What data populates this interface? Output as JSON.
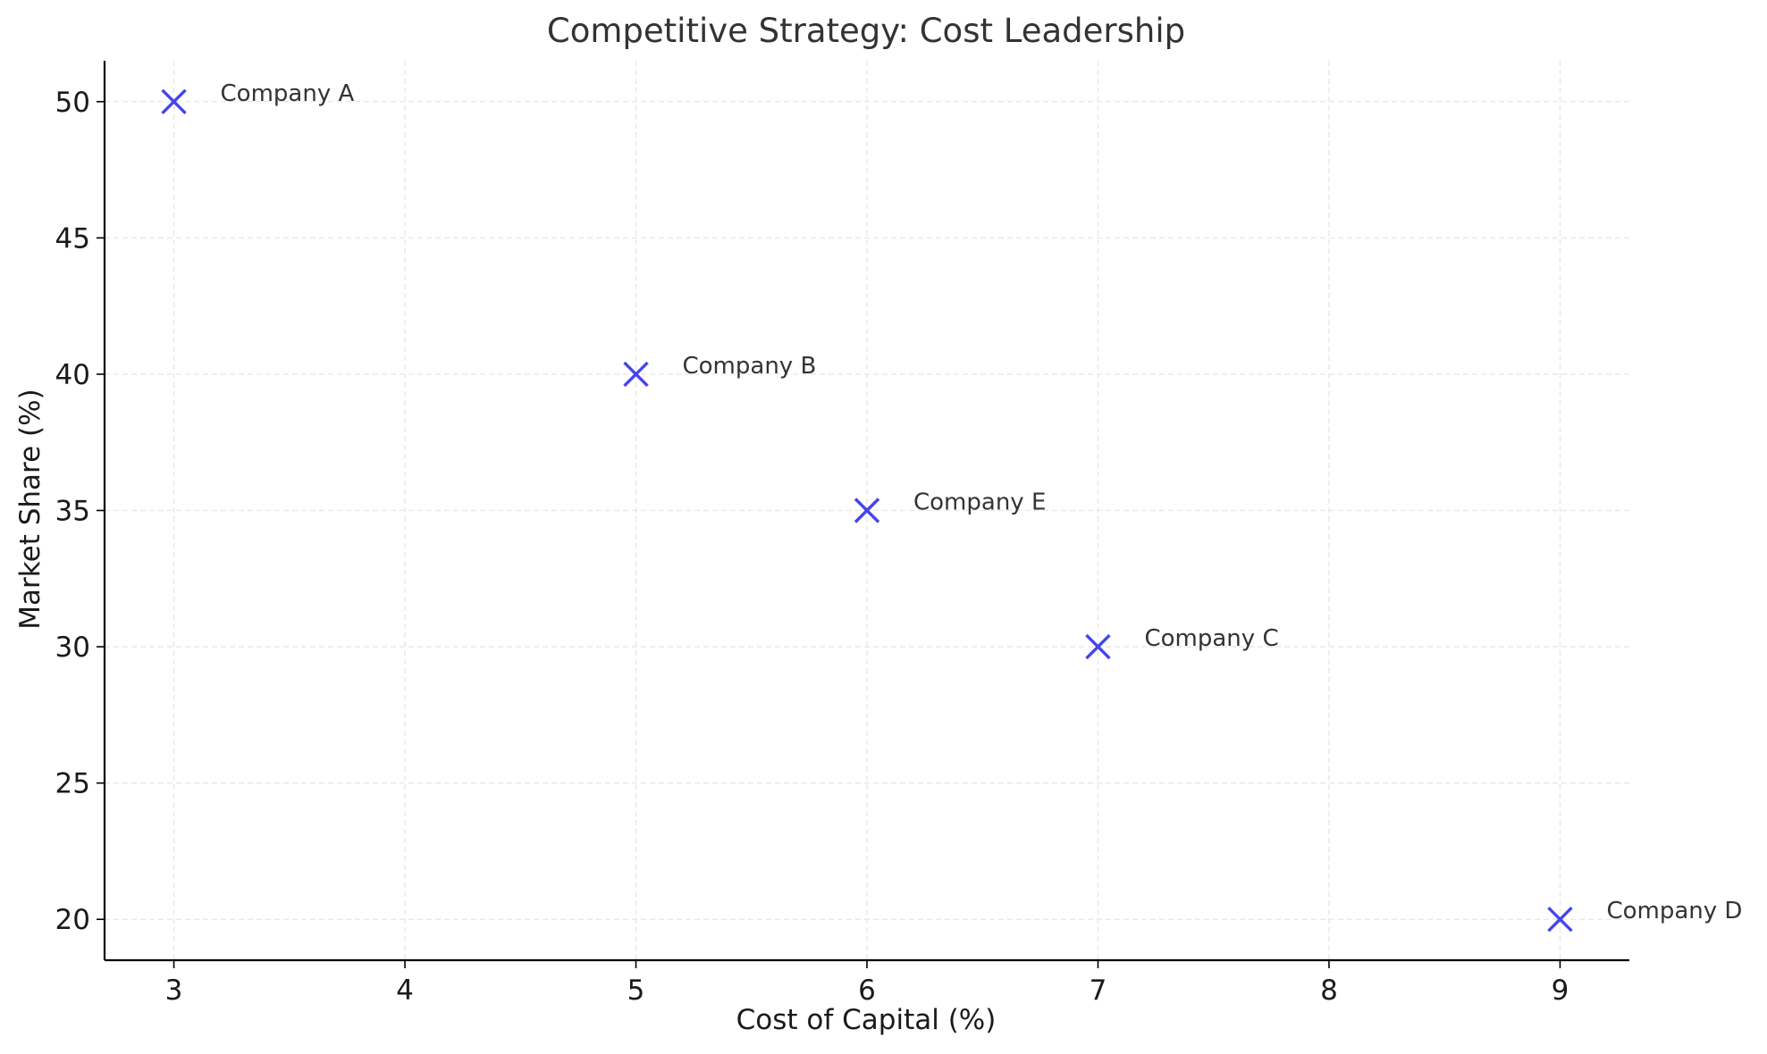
{
  "chart_data": {
    "type": "scatter",
    "title": "Competitive Strategy: Cost Leadership",
    "xlabel": "Cost of Capital (%)",
    "ylabel": "Market Share (%)",
    "xlim": [
      2.7,
      9.3
    ],
    "ylim": [
      18.5,
      51.5
    ],
    "xticks": [
      3,
      4,
      5,
      6,
      7,
      8,
      9
    ],
    "yticks": [
      20,
      25,
      30,
      35,
      40,
      45,
      50
    ],
    "grid": true,
    "marker": "x",
    "color": "#4444ee",
    "points": [
      {
        "label": "Company A",
        "x": 3,
        "y": 50
      },
      {
        "label": "Company B",
        "x": 5,
        "y": 40
      },
      {
        "label": "Company E",
        "x": 6,
        "y": 35
      },
      {
        "label": "Company C",
        "x": 7,
        "y": 30
      },
      {
        "label": "Company D",
        "x": 9,
        "y": 20
      }
    ]
  }
}
